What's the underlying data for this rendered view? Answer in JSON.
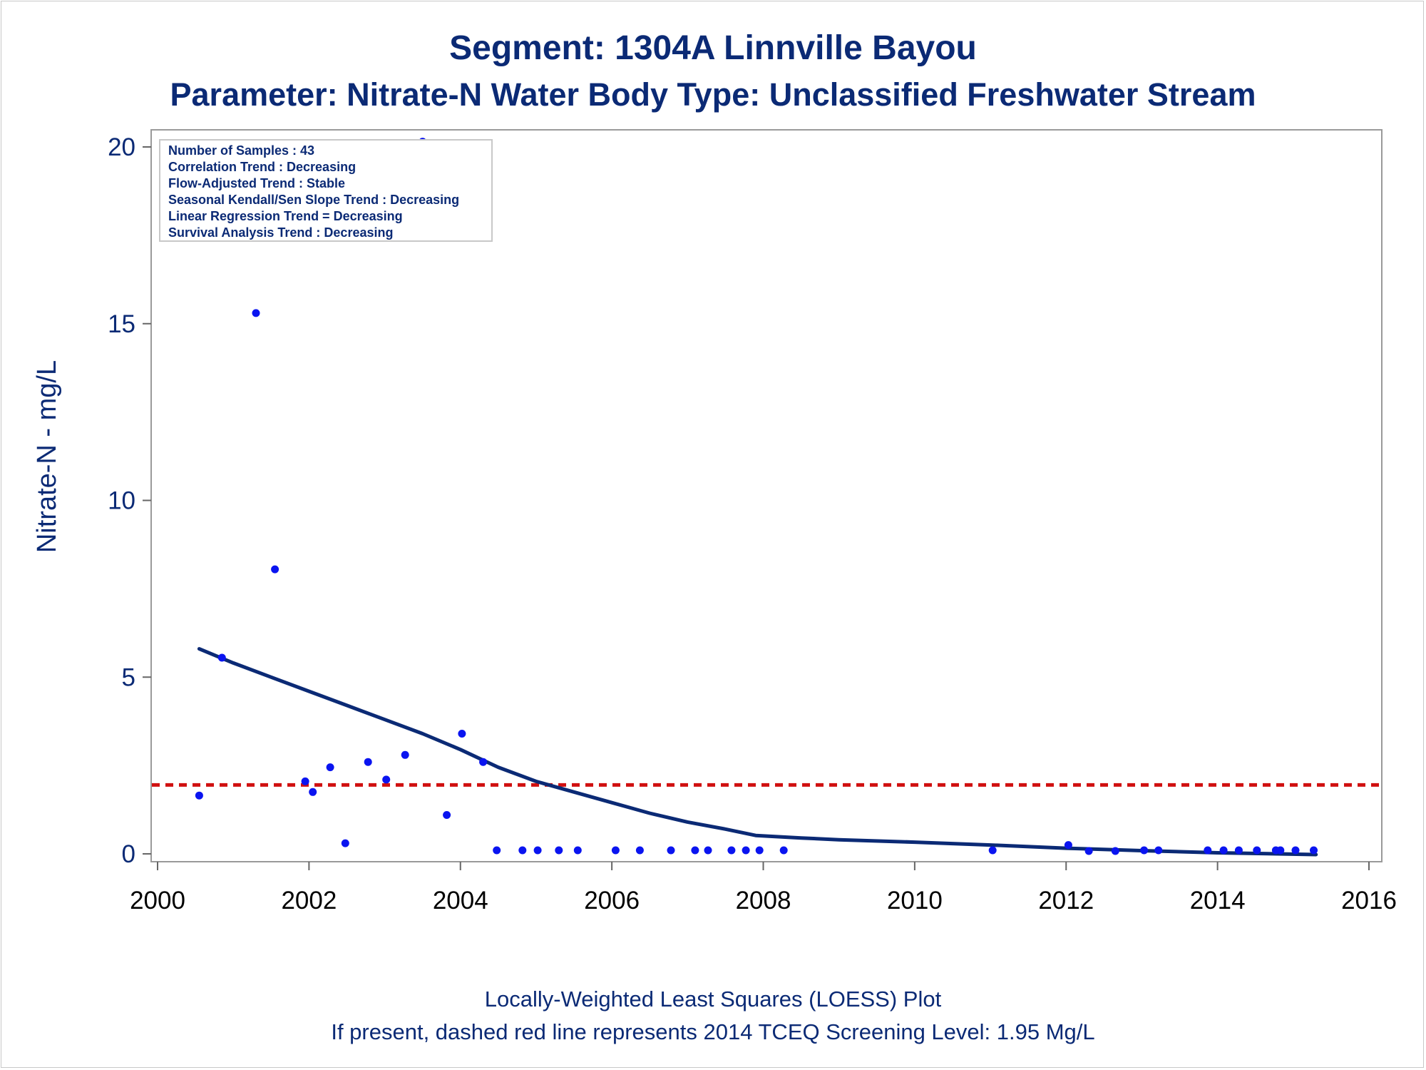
{
  "chart_data": {
    "type": "scatter",
    "title": "Segment: 1304A  Linnville Bayou",
    "subtitle": "Parameter: Nitrate-N   Water Body Type: Unclassified Freshwater Stream",
    "xlabel": "",
    "ylabel": "Nitrate-N - mg/L",
    "xlim": [
      2000,
      2016
    ],
    "ylim": [
      0,
      20
    ],
    "x_ticks": [
      "2000",
      "2002",
      "2004",
      "2006",
      "2008",
      "2010",
      "2012",
      "2014",
      "2016"
    ],
    "y_ticks": [
      "0",
      "5",
      "10",
      "15",
      "20"
    ],
    "grid": false,
    "stats_box": {
      "placement": "top-left",
      "lines": [
        "Number of Samples : 43",
        "Correlation Trend : Decreasing",
        "Flow-Adjusted Trend : Stable",
        "Seasonal Kendall/Sen Slope Trend : Decreasing",
        "Linear Regression Trend = Decreasing",
        "Survival Analysis Trend : Decreasing"
      ]
    },
    "samples": {
      "color": "#0a14f0",
      "points": [
        [
          2000.55,
          1.65
        ],
        [
          2000.85,
          5.55
        ],
        [
          2001.3,
          15.3
        ],
        [
          2001.55,
          8.05
        ],
        [
          2001.95,
          2.05
        ],
        [
          2002.05,
          1.75
        ],
        [
          2002.28,
          2.45
        ],
        [
          2002.48,
          0.3
        ],
        [
          2002.78,
          2.6
        ],
        [
          2003.02,
          2.1
        ],
        [
          2003.27,
          2.8
        ],
        [
          2003.5,
          20.15
        ],
        [
          2003.82,
          1.1
        ],
        [
          2004.02,
          3.4
        ],
        [
          2004.3,
          2.6
        ],
        [
          2004.48,
          0.1
        ],
        [
          2004.82,
          0.1
        ],
        [
          2005.02,
          0.1
        ],
        [
          2005.3,
          0.1
        ],
        [
          2005.55,
          0.1
        ],
        [
          2006.05,
          0.1
        ],
        [
          2006.37,
          0.1
        ],
        [
          2006.78,
          0.1
        ],
        [
          2007.1,
          0.1
        ],
        [
          2007.27,
          0.1
        ],
        [
          2007.58,
          0.1
        ],
        [
          2007.77,
          0.1
        ],
        [
          2007.95,
          0.1
        ],
        [
          2008.27,
          0.1
        ],
        [
          2011.03,
          0.1
        ],
        [
          2012.03,
          0.25
        ],
        [
          2012.3,
          0.08
        ],
        [
          2012.65,
          0.08
        ],
        [
          2013.03,
          0.1
        ],
        [
          2013.22,
          0.1
        ],
        [
          2013.87,
          0.1
        ],
        [
          2014.08,
          0.1
        ],
        [
          2014.28,
          0.1
        ],
        [
          2014.52,
          0.1
        ],
        [
          2014.77,
          0.1
        ],
        [
          2014.83,
          0.1
        ],
        [
          2015.03,
          0.1
        ],
        [
          2015.27,
          0.1
        ]
      ]
    },
    "loess": {
      "color": "#0b2a75",
      "points": [
        [
          2000.55,
          5.8
        ],
        [
          2001.0,
          5.4
        ],
        [
          2001.5,
          5.0
        ],
        [
          2002.0,
          4.6
        ],
        [
          2002.5,
          4.2
        ],
        [
          2003.0,
          3.8
        ],
        [
          2003.5,
          3.4
        ],
        [
          2004.0,
          2.95
        ],
        [
          2004.5,
          2.45
        ],
        [
          2005.0,
          2.05
        ],
        [
          2005.5,
          1.75
        ],
        [
          2006.0,
          1.45
        ],
        [
          2006.5,
          1.15
        ],
        [
          2007.0,
          0.9
        ],
        [
          2007.5,
          0.7
        ],
        [
          2007.9,
          0.52
        ],
        [
          2008.5,
          0.45
        ],
        [
          2009.0,
          0.4
        ],
        [
          2010.0,
          0.33
        ],
        [
          2011.0,
          0.25
        ],
        [
          2012.0,
          0.16
        ],
        [
          2013.0,
          0.09
        ],
        [
          2014.0,
          0.03
        ],
        [
          2015.3,
          -0.02
        ]
      ]
    },
    "screening_level": {
      "value": 1.95,
      "color": "#d01010",
      "style": "dashed"
    }
  },
  "footnotes": {
    "line1": "Locally-Weighted Least Squares (LOESS) Plot",
    "line2": "If present, dashed red line represents 2014 TCEQ Screening Level: 1.95 Mg/L"
  }
}
